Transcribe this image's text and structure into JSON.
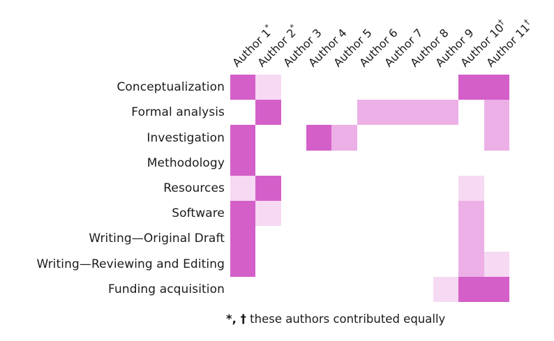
{
  "figure": {
    "footnote": {
      "markers": "*, †",
      "text": " these authors contributed equally"
    }
  },
  "chart_data": {
    "type": "heatmap",
    "title": "",
    "xlabel": "",
    "ylabel": "",
    "legend": "none",
    "grid": "off",
    "columns": [
      {
        "label": "Author 1",
        "suffix": "*"
      },
      {
        "label": "Author 2",
        "suffix": "*"
      },
      {
        "label": "Author 3",
        "suffix": ""
      },
      {
        "label": "Author 4",
        "suffix": ""
      },
      {
        "label": "Author 5",
        "suffix": ""
      },
      {
        "label": "Author 6",
        "suffix": ""
      },
      {
        "label": "Author 7",
        "suffix": ""
      },
      {
        "label": "Author 8",
        "suffix": ""
      },
      {
        "label": "Author 9",
        "suffix": ""
      },
      {
        "label": "Author 10",
        "suffix": "†"
      },
      {
        "label": "Author 11",
        "suffix": "†"
      }
    ],
    "rows": [
      "Conceptualization",
      "Formal analysis",
      "Investigation",
      "Methodology",
      "Resources",
      "Software",
      "Writing—Original Draft",
      "Writing—Reviewing and Editing",
      "Funding acquisition"
    ],
    "value_meaning": "contribution intensity: 0=none, 1=light, 2=medium, 3=strong",
    "values": [
      [
        3,
        1,
        0,
        0,
        0,
        0,
        0,
        0,
        0,
        3,
        3
      ],
      [
        0,
        3,
        0,
        0,
        0,
        2,
        2,
        2,
        2,
        0,
        2
      ],
      [
        3,
        0,
        0,
        3,
        2,
        0,
        0,
        0,
        0,
        0,
        2
      ],
      [
        3,
        0,
        0,
        0,
        0,
        0,
        0,
        0,
        0,
        0,
        0
      ],
      [
        1,
        3,
        0,
        0,
        0,
        0,
        0,
        0,
        0,
        1,
        0
      ],
      [
        3,
        1,
        0,
        0,
        0,
        0,
        0,
        0,
        0,
        2,
        0
      ],
      [
        3,
        0,
        0,
        0,
        0,
        0,
        0,
        0,
        0,
        2,
        0
      ],
      [
        3,
        0,
        0,
        0,
        0,
        0,
        0,
        0,
        0,
        2,
        1
      ],
      [
        0,
        0,
        0,
        0,
        0,
        0,
        0,
        0,
        1,
        3,
        3
      ]
    ],
    "colors": {
      "0": "#ffffff",
      "1": "#f6d9f2",
      "2": "#ecb0e6",
      "3": "#d45fc9"
    },
    "footnote": "*, † these authors contributed equally"
  }
}
